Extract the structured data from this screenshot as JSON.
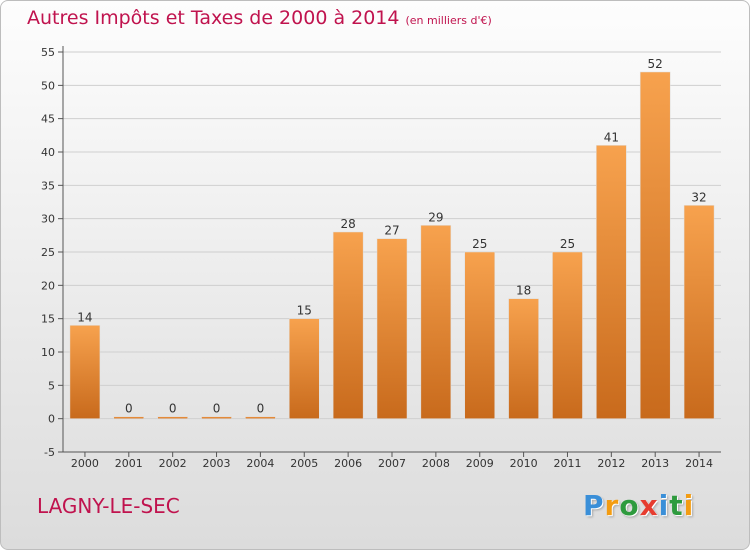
{
  "title": "Autres Impôts et Taxes de 2000 à 2014",
  "subtitle": "(en milliers d'€)",
  "location": "LAGNY-LE-SEC",
  "brand": {
    "letters": [
      "P",
      "r",
      "o",
      "x",
      "i",
      "t",
      "i"
    ],
    "colors": [
      "#3a8fd8",
      "#f39c12",
      "#2e9b3e",
      "#e63c2f",
      "#3a8fd8",
      "#2e9b3e",
      "#f39c12"
    ]
  },
  "colors": {
    "accent": "#c0134e",
    "bar_top": "#f7a24e",
    "bar_bottom": "#c86a1c"
  },
  "chart_data": {
    "type": "bar",
    "categories": [
      "2000",
      "2001",
      "2002",
      "2003",
      "2004",
      "2005",
      "2006",
      "2007",
      "2008",
      "2009",
      "2010",
      "2011",
      "2012",
      "2013",
      "2014"
    ],
    "values": [
      14,
      0,
      0,
      0,
      0,
      15,
      28,
      27,
      29,
      25,
      18,
      25,
      41,
      52,
      32
    ],
    "data_labels": [
      "14",
      "0",
      "0",
      "0",
      "0",
      "15",
      "28",
      "27",
      "29",
      "25",
      "18",
      "25",
      "41",
      "52",
      "32"
    ],
    "yticks": [
      -5,
      0,
      5,
      10,
      15,
      20,
      25,
      30,
      35,
      40,
      45,
      50,
      55
    ],
    "ylim": [
      -5,
      55
    ],
    "grid": true,
    "title": "Autres Impôts et Taxes de 2000 à 2014",
    "xlabel": "",
    "ylabel": ""
  }
}
